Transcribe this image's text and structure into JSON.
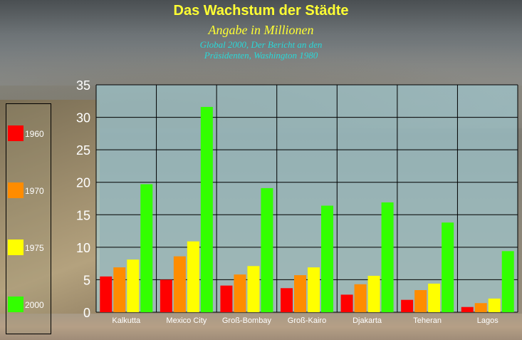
{
  "chart_data": {
    "type": "bar",
    "title": "Das Wachstum der Städte",
    "subtitle": "Angabe in Millionen",
    "source": [
      "Global 2000, Der Bericht an den",
      "Präsidenten, Washington 1980"
    ],
    "categories": [
      "Kalkutta",
      "Mexico City",
      "Groß-Bombay",
      "Groß-Kairo",
      "Djakarta",
      "Teheran",
      "Lagos"
    ],
    "series": [
      {
        "name": "1960",
        "color": "#ff0000",
        "values": [
          5.5,
          5.0,
          4.1,
          3.7,
          2.7,
          1.9,
          0.8
        ]
      },
      {
        "name": "1970",
        "color": "#ff8c00",
        "values": [
          6.9,
          8.6,
          5.8,
          5.7,
          4.3,
          3.4,
          1.4
        ]
      },
      {
        "name": "1975",
        "color": "#ffff00",
        "values": [
          8.1,
          10.9,
          7.1,
          6.9,
          5.6,
          4.4,
          2.1
        ]
      },
      {
        "name": "2000",
        "color": "#33ff00",
        "values": [
          19.7,
          31.6,
          19.1,
          16.4,
          16.9,
          13.8,
          9.4
        ]
      }
    ],
    "yticks": [
      "0",
      "5",
      "10",
      "15",
      "20",
      "25",
      "30",
      "35"
    ],
    "ylim": [
      0,
      35
    ],
    "grid": true,
    "legend_position": "left"
  }
}
